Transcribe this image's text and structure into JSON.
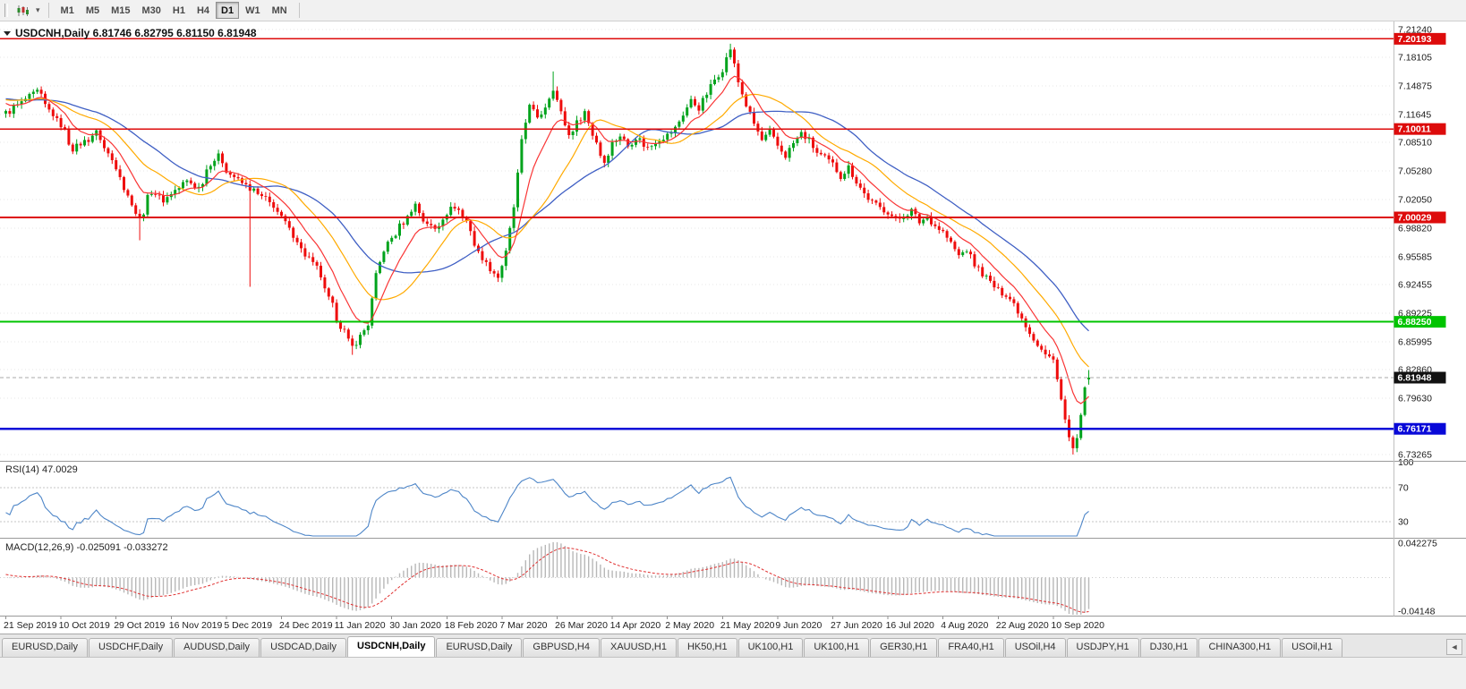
{
  "toolbar": {
    "timeframes": [
      "M1",
      "M5",
      "M15",
      "M30",
      "H1",
      "H4",
      "D1",
      "W1",
      "MN"
    ],
    "active_timeframe": "D1"
  },
  "chart": {
    "title_line": "USDCNH,Daily 6.81746 6.82795 6.81150 6.81948",
    "symbol": "USDCNH",
    "period": "Daily"
  },
  "rsi": {
    "label": "RSI(14) 47.0029",
    "axis": [
      "100",
      "70",
      "30"
    ],
    "axis_values": [
      100,
      70,
      30
    ]
  },
  "macd": {
    "label": "MACD(12,26,9) -0.025091 -0.033272",
    "axis": [
      "0.042275",
      "-0.04148"
    ]
  },
  "tab_bar": {
    "items": [
      "EURUSD,Daily",
      "USDCHF,Daily",
      "AUDUSD,Daily",
      "USDCAD,Daily",
      "USDCNH,Daily",
      "EURUSD,Daily",
      "GBPUSD,H4",
      "XAUUSD,H1",
      "HK50,H1",
      "UK100,H1",
      "UK100,H1",
      "GER30,H1",
      "FRA40,H1",
      "USOil,H4",
      "USDJPY,H1",
      "DJ30,H1",
      "CHINA300,H1",
      "USOil,H1"
    ],
    "active_index": 4,
    "scroll_left_glyph": "◄"
  },
  "chart_data": {
    "type": "candlestick",
    "symbol": "USDCNH",
    "timeframe": "Daily",
    "last_candle": {
      "open": 6.81746,
      "high": 6.82795,
      "low": 6.8115,
      "close": 6.81948
    },
    "current_price": 6.81948,
    "current_price_label": "6.81948",
    "y_range": [
      6.73265,
      7.2124
    ],
    "y_axis_ticks": [
      7.2124,
      7.18105,
      7.14875,
      7.11645,
      7.0851,
      7.0528,
      7.0205,
      6.9882,
      6.95585,
      6.92455,
      6.89225,
      6.85995,
      6.8286,
      6.7963,
      6.73265
    ],
    "levels": [
      {
        "price": 7.20193,
        "label": "7.20193",
        "color": "#dd0b0b",
        "width": 1.6
      },
      {
        "price": 7.10011,
        "label": "7.10011",
        "color": "#dd0b0b",
        "width": 1.8
      },
      {
        "price": 7.00029,
        "label": "7.00029",
        "color": "#dd0b0b",
        "width": 1.8
      },
      {
        "price": 6.8825,
        "label": "6.88250",
        "color": "#00c400",
        "width": 1.8
      },
      {
        "price": 6.76171,
        "label": "6.76171",
        "color": "#0808d8",
        "width": 2.2
      }
    ],
    "x_labels": [
      "21 Sep 2019",
      "10 Oct 2019",
      "29 Oct 2019",
      "16 Nov 2019",
      "5 Dec 2019",
      "24 Dec 2019",
      "11 Jan 2020",
      "30 Jan 2020",
      "18 Feb 2020",
      "7 Mar 2020",
      "26 Mar 2020",
      "14 Apr 2020",
      "2 May 2020",
      "21 May 2020",
      "9 Jun 2020",
      "27 Jun 2020",
      "16 Jul 2020",
      "4 Aug 2020",
      "22 Aug 2020",
      "10 Sep 2020"
    ],
    "candles_per_label": 14,
    "num_candles": 276,
    "price_path_anchors": [
      [
        -60,
        7.045
      ],
      [
        -45,
        7.095
      ],
      [
        -30,
        7.14
      ],
      [
        -18,
        7.128
      ],
      [
        -8,
        7.145
      ],
      [
        0,
        7.118
      ],
      [
        3,
        7.127
      ],
      [
        6,
        7.136
      ],
      [
        8,
        7.142
      ],
      [
        11,
        7.121
      ],
      [
        14,
        7.105
      ],
      [
        17,
        7.078
      ],
      [
        20,
        7.086
      ],
      [
        23,
        7.096
      ],
      [
        26,
        7.072
      ],
      [
        28,
        7.058
      ],
      [
        31,
        7.024
      ],
      [
        34,
        6.999
      ],
      [
        37,
        7.03
      ],
      [
        40,
        7.02
      ],
      [
        43,
        7.031
      ],
      [
        46,
        7.041
      ],
      [
        49,
        7.034
      ],
      [
        52,
        7.062
      ],
      [
        54,
        7.069
      ],
      [
        57,
        7.049
      ],
      [
        60,
        7.039
      ],
      [
        62,
        7.033
      ],
      [
        65,
        7.023
      ],
      [
        68,
        7.014
      ],
      [
        70,
        6.999
      ],
      [
        73,
        6.981
      ],
      [
        76,
        6.958
      ],
      [
        79,
        6.943
      ],
      [
        82,
        6.908
      ],
      [
        85,
        6.878
      ],
      [
        88,
        6.854
      ],
      [
        90,
        6.866
      ],
      [
        92,
        6.88
      ],
      [
        94,
        6.934
      ],
      [
        96,
        6.964
      ],
      [
        98,
        6.977
      ],
      [
        101,
        6.995
      ],
      [
        104,
        7.015
      ],
      [
        106,
        6.997
      ],
      [
        109,
        6.987
      ],
      [
        112,
        7.006
      ],
      [
        114,
        7.013
      ],
      [
        117,
        6.996
      ],
      [
        120,
        6.96
      ],
      [
        123,
        6.943
      ],
      [
        125,
        6.933
      ],
      [
        127,
        6.96
      ],
      [
        129,
        7.012
      ],
      [
        131,
        7.085
      ],
      [
        133,
        7.13
      ],
      [
        135,
        7.11
      ],
      [
        137,
        7.126
      ],
      [
        139,
        7.147
      ],
      [
        141,
        7.118
      ],
      [
        143,
        7.093
      ],
      [
        145,
        7.107
      ],
      [
        147,
        7.12
      ],
      [
        149,
        7.094
      ],
      [
        152,
        7.063
      ],
      [
        154,
        7.084
      ],
      [
        156,
        7.093
      ],
      [
        158,
        7.081
      ],
      [
        160,
        7.091
      ],
      [
        163,
        7.079
      ],
      [
        166,
        7.089
      ],
      [
        168,
        7.093
      ],
      [
        170,
        7.101
      ],
      [
        172,
        7.117
      ],
      [
        174,
        7.132
      ],
      [
        176,
        7.124
      ],
      [
        178,
        7.14
      ],
      [
        180,
        7.156
      ],
      [
        182,
        7.168
      ],
      [
        184,
        7.191
      ],
      [
        186,
        7.153
      ],
      [
        188,
        7.127
      ],
      [
        190,
        7.106
      ],
      [
        192,
        7.087
      ],
      [
        194,
        7.096
      ],
      [
        196,
        7.081
      ],
      [
        198,
        7.07
      ],
      [
        200,
        7.084
      ],
      [
        202,
        7.095
      ],
      [
        204,
        7.087
      ],
      [
        206,
        7.073
      ],
      [
        208,
        7.067
      ],
      [
        210,
        7.06
      ],
      [
        212,
        7.047
      ],
      [
        214,
        7.057
      ],
      [
        216,
        7.041
      ],
      [
        218,
        7.027
      ],
      [
        220,
        7.017
      ],
      [
        222,
        7.011
      ],
      [
        224,
        7.007
      ],
      [
        226,
        6.997
      ],
      [
        228,
        7.002
      ],
      [
        230,
        7.008
      ],
      [
        232,
        6.995
      ],
      [
        234,
        7.001
      ],
      [
        236,
        6.991
      ],
      [
        238,
        6.984
      ],
      [
        240,
        6.971
      ],
      [
        242,
        6.957
      ],
      [
        244,
        6.964
      ],
      [
        246,
        6.947
      ],
      [
        248,
        6.937
      ],
      [
        250,
        6.927
      ],
      [
        252,
        6.917
      ],
      [
        254,
        6.914
      ],
      [
        256,
        6.903
      ],
      [
        258,
        6.887
      ],
      [
        260,
        6.871
      ],
      [
        262,
        6.857
      ],
      [
        264,
        6.845
      ],
      [
        266,
        6.839
      ],
      [
        267,
        6.821
      ],
      [
        268,
        6.795
      ],
      [
        269,
        6.771
      ],
      [
        270,
        6.751
      ],
      [
        271,
        6.739
      ],
      [
        272,
        6.748
      ],
      [
        273,
        6.774
      ],
      [
        274,
        6.812
      ],
      [
        275,
        6.8195
      ]
    ],
    "spikes": [
      {
        "index": 34,
        "low": 6.9745
      },
      {
        "index": 62,
        "low": 6.922
      },
      {
        "index": 88,
        "low": 6.8452
      },
      {
        "index": 139,
        "high": 7.1651
      },
      {
        "index": 184,
        "high": 7.1964
      },
      {
        "index": 271,
        "low": 6.7327
      }
    ],
    "colors": {
      "up": "#00a31c",
      "down": "#ee0c0c",
      "grid": "#e7e7e7",
      "ma_fast": "#f93535",
      "ma_mid": "#ffaa00",
      "ma_slow": "#3f5fc4",
      "rsi": "#4e86c8",
      "rsi_level": "#c4c4c4",
      "macd_hist": "#b8b8b8",
      "macd_signal": "#e03030",
      "current_badge": "#111111",
      "separator": "#9a9a9a",
      "axis_line": "#c0c0c0"
    },
    "indicators": {
      "ma_fast": {
        "type": "ema",
        "period": 10
      },
      "ma_mid": {
        "type": "sma",
        "period": 21
      },
      "ma_slow": {
        "type": "sma",
        "period": 34
      },
      "rsi": {
        "period": 14,
        "value": 47.0029,
        "levels": [
          70,
          30
        ]
      },
      "macd": {
        "fast": 12,
        "slow": 26,
        "signal": 9,
        "value": -0.025091,
        "signal_value": -0.033272,
        "y_max": 0.042275,
        "y_min": -0.04148
      }
    }
  }
}
